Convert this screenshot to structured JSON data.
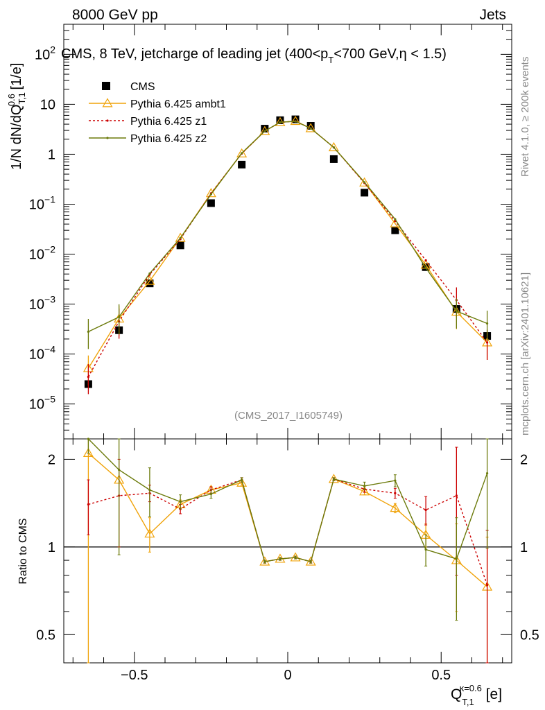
{
  "header": {
    "left": "8000 GeV pp",
    "right": "Jets"
  },
  "side_text": {
    "rivet": "Rivet 4.1.0, ≥ 200k events",
    "mcplots": "mcplots.cern.ch [arXiv:2401.10621]"
  },
  "labels": {
    "ratio_ylabel": "Ratio to CMS",
    "analysis_id": "(CMS_2017_I1605749)"
  },
  "chart_data": {
    "type": "scatter",
    "title": "CMS, 8 TeV, jetcharge of leading jet (400<p_T<700 GeV,η < 1.5)",
    "xlabel": "Q_T,1^κ=0.6 [e]",
    "ylabel": "1/N dN/dQ_T,1^0.6 [1/e]",
    "xlim": [
      -0.73,
      0.73
    ],
    "ylim_log": [
      2e-06,
      400
    ],
    "ratio_ylim": [
      0.4,
      2.35
    ],
    "x_ticks": [
      -0.5,
      0,
      0.5
    ],
    "x_tick_labels": [
      "−0.5",
      "0",
      "0.5"
    ],
    "y_ticks": [
      {
        "v": 100,
        "base": "10",
        "exp": "2"
      },
      {
        "v": 10,
        "base": "10",
        "exp": ""
      },
      {
        "v": 1,
        "base": "1",
        "exp": ""
      },
      {
        "v": 0.1,
        "base": "10",
        "exp": "−1"
      },
      {
        "v": 0.01,
        "base": "10",
        "exp": "−2"
      },
      {
        "v": 0.001,
        "base": "10",
        "exp": "−3"
      },
      {
        "v": 0.0001,
        "base": "10",
        "exp": "−4"
      },
      {
        "v": 1e-05,
        "base": "10",
        "exp": "−5"
      }
    ],
    "ratio_ticks": [
      {
        "v": 2,
        "label": "2"
      },
      {
        "v": 1,
        "label": "1"
      },
      {
        "v": 0.5,
        "label": "0.5"
      }
    ],
    "x": [
      -0.65,
      -0.55,
      -0.45,
      -0.35,
      -0.25,
      -0.15,
      -0.075,
      -0.025,
      0.025,
      0.075,
      0.15,
      0.25,
      0.35,
      0.45,
      0.55,
      0.65
    ],
    "series": [
      {
        "name": "CMS",
        "kind": "data",
        "color": "#000000",
        "values": [
          2.5e-05,
          0.0003,
          0.0026,
          0.015,
          0.105,
          0.62,
          3.25,
          4.8,
          5.0,
          3.7,
          0.8,
          0.17,
          0.03,
          0.0055,
          0.0008,
          0.00023
        ],
        "ratio": [
          1,
          1,
          1,
          1,
          1,
          1,
          1,
          1,
          1,
          1,
          1,
          1,
          1,
          1,
          1,
          1
        ]
      },
      {
        "name": "Pythia 6.425 ambt1",
        "kind": "triangle",
        "color": "#f0a30a",
        "values": [
          5.2e-05,
          0.00051,
          0.0029,
          0.021,
          0.165,
          1.03,
          2.89,
          4.36,
          4.61,
          3.3,
          1.37,
          0.27,
          0.041,
          0.0061,
          0.0007,
          0.00017
        ],
        "ratio": [
          2.1,
          1.7,
          1.11,
          1.4,
          1.57,
          1.66,
          0.89,
          0.91,
          0.92,
          0.89,
          1.71,
          1.55,
          1.36,
          1.1,
          0.9,
          0.73
        ],
        "ratio_err": [
          2.0,
          0.0,
          0.15,
          0.05,
          0.04,
          0.03,
          0.01,
          0.01,
          0.01,
          0.01,
          0.02,
          0.04,
          0.05,
          0.1,
          0.3,
          0.35
        ]
      },
      {
        "name": "Pythia 6.425 z1",
        "kind": "dot",
        "color": "#cc0000",
        "values": [
          3.5e-05,
          0.00045,
          0.0039,
          0.02,
          0.165,
          1.03,
          2.9,
          4.35,
          4.6,
          3.3,
          1.37,
          0.265,
          0.046,
          0.0075,
          0.0012,
          0.00017
        ],
        "ratio": [
          1.4,
          1.5,
          1.53,
          1.35,
          1.57,
          1.7,
          0.89,
          0.91,
          0.92,
          0.89,
          1.71,
          1.58,
          1.53,
          1.34,
          1.5,
          0.74
        ],
        "ratio_err": [
          0.3,
          0.5,
          0.1,
          0.05,
          0.04,
          0.03,
          0.01,
          0.01,
          0.01,
          0.01,
          0.02,
          0.04,
          0.06,
          0.15,
          0.7,
          0.4
        ]
      },
      {
        "name": "Pythia 6.425 z2",
        "kind": "dot",
        "color": "#6b7a0a",
        "values": [
          0.00028,
          0.00055,
          0.0041,
          0.021,
          0.158,
          1.05,
          2.9,
          4.37,
          4.55,
          3.29,
          1.37,
          0.275,
          0.05,
          0.0053,
          0.00072,
          0.00041
        ],
        "ratio": [
          2.9,
          1.84,
          1.57,
          1.43,
          1.52,
          1.7,
          0.89,
          0.91,
          0.92,
          0.89,
          1.71,
          1.62,
          1.69,
          0.98,
          0.91,
          1.79
        ],
        "ratio_err": [
          0.8,
          0.9,
          0.3,
          0.08,
          0.05,
          0.03,
          0.01,
          0.01,
          0.01,
          0.01,
          0.02,
          0.05,
          0.08,
          0.12,
          0.35,
          0.8
        ]
      }
    ]
  }
}
